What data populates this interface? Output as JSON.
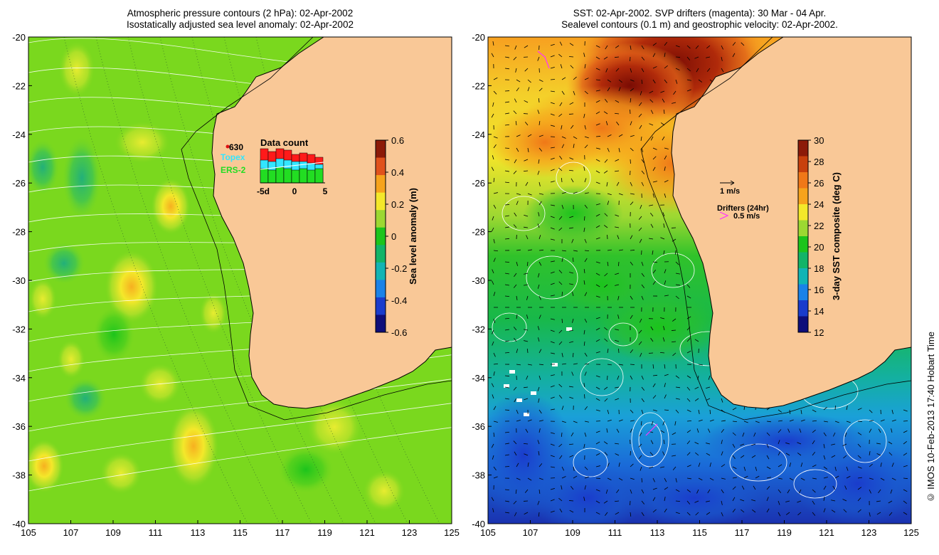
{
  "left_panel": {
    "title_line1": "Atmospheric pressure contours (2 hPa): 02-Apr-2002",
    "title_line2": "Isostatically adjusted sea level anomaly: 02-Apr-2002",
    "colorbar_label": "Sea level anomaly (m)",
    "colorbar_ticks": [
      "0.6",
      "0.4",
      "0.2",
      "0",
      "-0.2",
      "-0.4",
      "-0.6"
    ],
    "colorbar_colors": [
      "#8c1a08",
      "#e0521c",
      "#f6a31c",
      "#f4e82a",
      "#9cd832",
      "#1cc41c",
      "#12b468",
      "#12b4b4",
      "#1a82e8",
      "#1a3ccc",
      "#0e0e7a"
    ],
    "inset": {
      "title": "Data count",
      "count_label": "630",
      "legend_topex": "Topex",
      "legend_ers2": "ERS-2",
      "x_ticks": [
        "-5d",
        "0",
        "5"
      ],
      "topex_color": "#33e6ff",
      "ers2_color": "#22dd22",
      "total_color": "#ff1a1a"
    }
  },
  "right_panel": {
    "title_line1": "SST: 02-Apr-2002. SVP drifters (magenta): 30 Mar - 04 Apr.",
    "title_line2": "Sealevel contours (0.1 m) and geostrophic velocity: 02-Apr-2002.",
    "colorbar_label": "3-day SST composite (deg C)",
    "colorbar_ticks": [
      "30",
      "28",
      "26",
      "24",
      "22",
      "20",
      "18",
      "16",
      "14",
      "12"
    ],
    "colorbar_colors": [
      "#8c1a08",
      "#c8400c",
      "#f07818",
      "#f6a31c",
      "#f4e82a",
      "#9cd832",
      "#1cc41c",
      "#12b468",
      "#12b4b4",
      "#1a82e8",
      "#1a3ccc",
      "#0e0e7a"
    ],
    "velocity_scale_label": "1 m/s",
    "drifters_label": "Drifters (24hr)",
    "drifter_scale_label": "0.5 m/s",
    "drifter_color": "#ff33ff"
  },
  "axes": {
    "x_ticks": [
      "105",
      "107",
      "109",
      "111",
      "113",
      "115",
      "117",
      "119",
      "121",
      "123",
      "125"
    ],
    "y_ticks": [
      "-20",
      "-22",
      "-24",
      "-26",
      "-28",
      "-30",
      "-32",
      "-34",
      "-36",
      "-38",
      "-40"
    ],
    "lon_range": [
      105,
      125
    ],
    "lat_range": [
      -40,
      -20
    ]
  },
  "colors": {
    "land": "#f9c897",
    "ocean_left": "#7ad81e",
    "contour": "#ffffff"
  },
  "credit": "© IMOS 10-Feb-2013 17:40 Hobart Time"
}
